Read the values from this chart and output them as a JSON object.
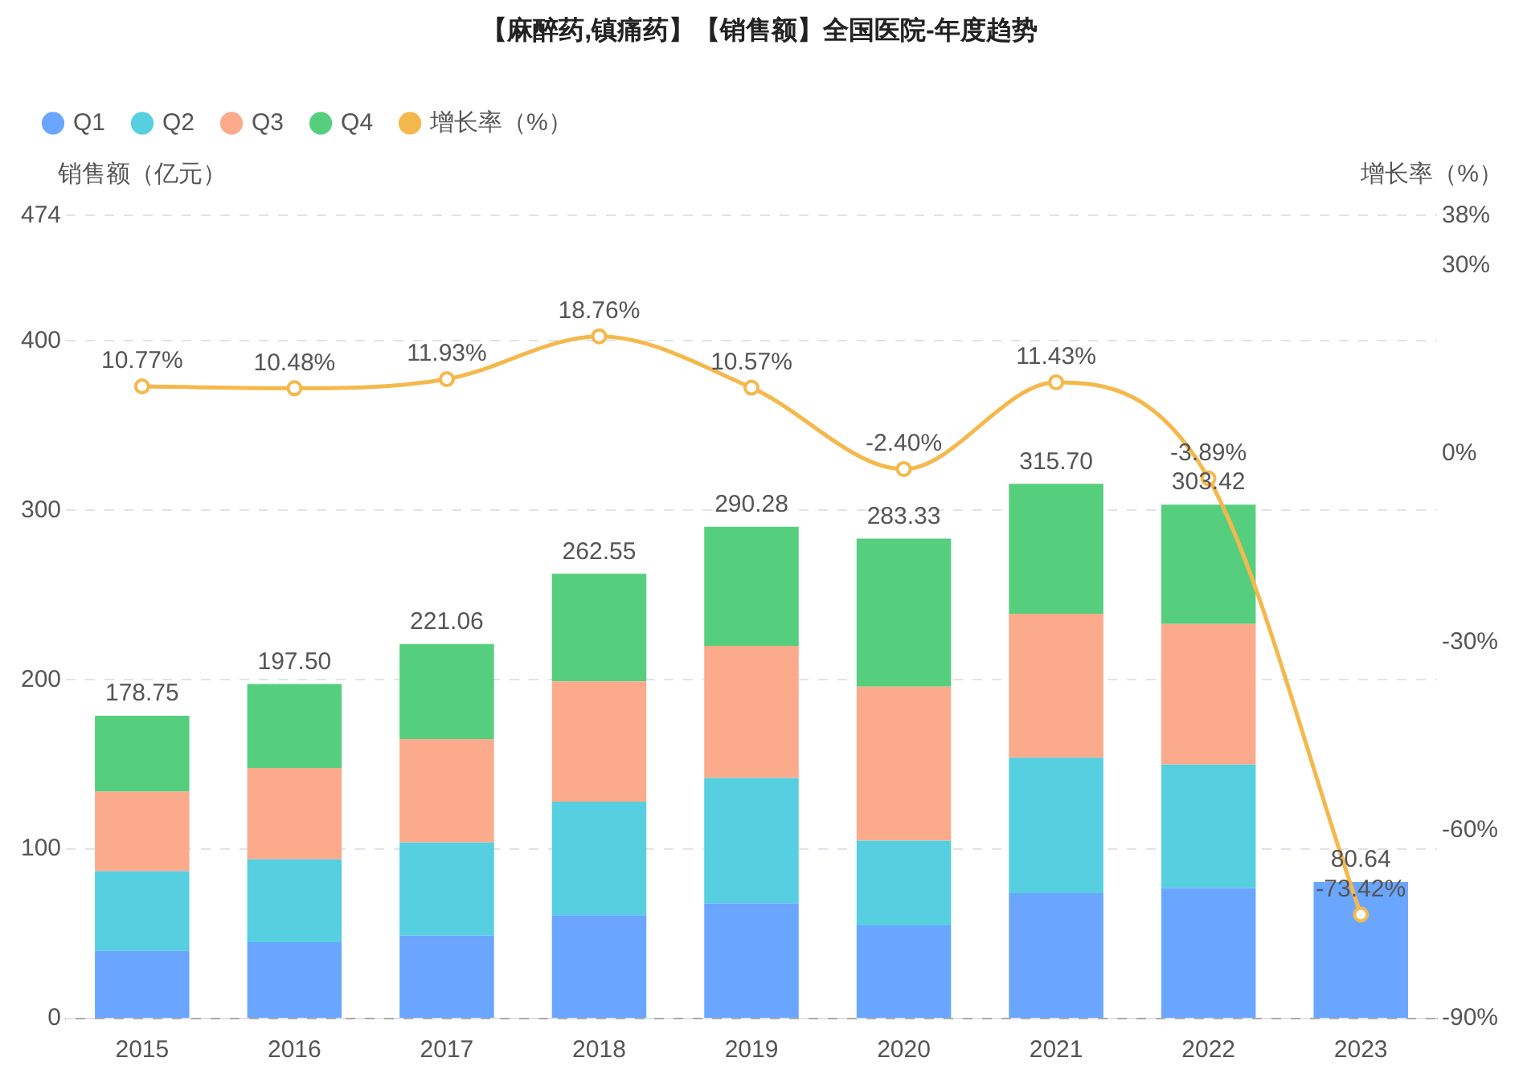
{
  "chart_data": {
    "type": "bar",
    "title": "【麻醉药,镇痛药】【销售额】全国医院-年度趋势",
    "ylabel": "销售额（亿元）",
    "y2label": "增长率（%）",
    "categories": [
      "2015",
      "2016",
      "2017",
      "2018",
      "2019",
      "2020",
      "2021",
      "2022",
      "2023"
    ],
    "stacked": true,
    "series": [
      {
        "name": "Q1",
        "color": "#6aa6ff",
        "values": [
          40,
          45,
          49,
          61,
          68,
          55,
          74,
          77,
          80.64
        ]
      },
      {
        "name": "Q2",
        "color": "#56cfe0",
        "values": [
          47,
          49,
          55,
          67,
          74,
          50,
          80,
          73,
          null
        ]
      },
      {
        "name": "Q3",
        "color": "#fbab8c",
        "values": [
          47,
          54,
          61,
          71,
          78,
          91,
          85,
          83,
          null
        ]
      },
      {
        "name": "Q4",
        "color": "#55cf7e",
        "values": [
          44.75,
          49.5,
          56.06,
          63.55,
          70.28,
          87.33,
          76.7,
          70.42,
          null
        ]
      },
      {
        "name": "增长率（%）",
        "type": "line",
        "axis": "y2",
        "color": "#f5b84c",
        "marker": "circle",
        "values": [
          10.77,
          10.48,
          11.93,
          18.76,
          10.57,
          -2.4,
          11.43,
          -3.89,
          -73.42
        ],
        "value_labels": [
          "10.77%",
          "10.48%",
          "11.93%",
          "18.76%",
          "10.57%",
          "-2.40%",
          "11.43%",
          "-3.89%",
          "-73.42%"
        ]
      }
    ],
    "totals": [
      "178.75",
      "197.50",
      "221.06",
      "262.55",
      "290.28",
      "283.33",
      "315.70",
      "303.42",
      "80.64"
    ],
    "ylim": [
      0,
      474
    ],
    "yticks": [
      0,
      100,
      200,
      300,
      400,
      474
    ],
    "y2lim": [
      -90,
      38
    ],
    "y2ticks": [
      {
        "value": -90,
        "label": "-90%"
      },
      {
        "value": -60,
        "label": "-60%"
      },
      {
        "value": -30,
        "label": "-30%"
      },
      {
        "value": 0,
        "label": "0%"
      },
      {
        "value": 30,
        "label": "30%"
      },
      {
        "value": 38,
        "label": "38%"
      }
    ],
    "grid": "y",
    "legend": "top left"
  }
}
